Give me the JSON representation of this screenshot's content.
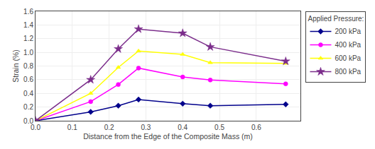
{
  "chart_data": {
    "type": "line",
    "x_label": "Distance from the Edge of the Composite Mass (m)",
    "y_label": "Strain (%)",
    "legend_title": "Applied Pressure:",
    "legend": "right",
    "grid": true,
    "xlim": [
      0.0,
      0.72
    ],
    "ylim": [
      0.0,
      1.6
    ],
    "xticks": [
      {
        "value": 0.0,
        "label": "0.0"
      },
      0.1,
      0.2,
      0.3,
      0.4,
      0.5,
      0.6
    ],
    "yticks": [
      {
        "value": 0.0,
        "label": "0.0"
      },
      0.2,
      0.4,
      0.6,
      0.8,
      {
        "value": 1.0,
        "label": "1.0"
      },
      1.2,
      1.4,
      1.6
    ],
    "x": [
      0.0,
      0.15,
      0.225,
      0.28,
      0.4,
      0.475,
      0.68
    ],
    "series": [
      {
        "name": "200 kPa",
        "color": "#00008B",
        "marker": "diamond",
        "values": [
          0.0,
          0.13,
          0.22,
          0.31,
          0.25,
          0.22,
          0.24
        ]
      },
      {
        "name": "400 kPa",
        "color": "#FF00FF",
        "marker": "circle",
        "values": [
          0.0,
          0.28,
          0.53,
          0.77,
          0.64,
          0.595,
          0.54
        ]
      },
      {
        "name": "600 kPa",
        "color": "#FFFF00",
        "marker": "triangle-up",
        "values": [
          0.0,
          0.4,
          0.78,
          1.02,
          0.97,
          0.85,
          0.84
        ]
      },
      {
        "name": "800 kPa",
        "color": "#7B2D8B",
        "marker": "star",
        "values": [
          0.0,
          0.6,
          1.05,
          1.34,
          1.28,
          1.08,
          0.87
        ]
      }
    ]
  }
}
